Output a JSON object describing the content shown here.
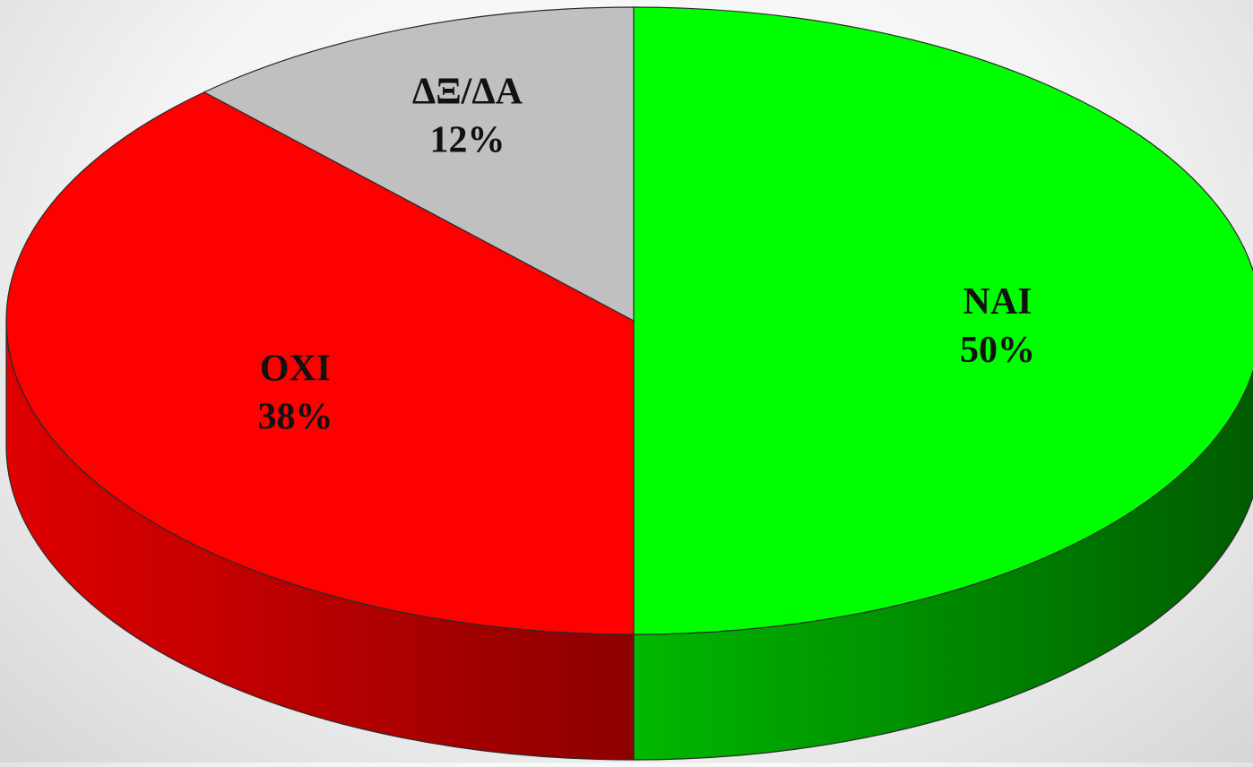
{
  "chart_data": {
    "type": "pie",
    "style": "3d",
    "start": "12 o'clock, clockwise",
    "slices": [
      {
        "label": "ΝΑΙ",
        "value": 50,
        "value_label": "50%",
        "color": "#00ff00",
        "side_color_light": "#00b800",
        "side_color_dark": "#005a00"
      },
      {
        "label": "ΟΧΙ",
        "value": 38,
        "value_label": "38%",
        "color": "#ff0000",
        "side_color_light": "#e00000",
        "side_color_dark": "#8c0000"
      },
      {
        "label": "ΔΞ/ΔΑ",
        "value": 12,
        "value_label": "12%",
        "color": "#c0c0c0",
        "side_color_light": "#a8a8a8",
        "side_color_dark": "#7a7a7a"
      }
    ],
    "legend": "none"
  }
}
